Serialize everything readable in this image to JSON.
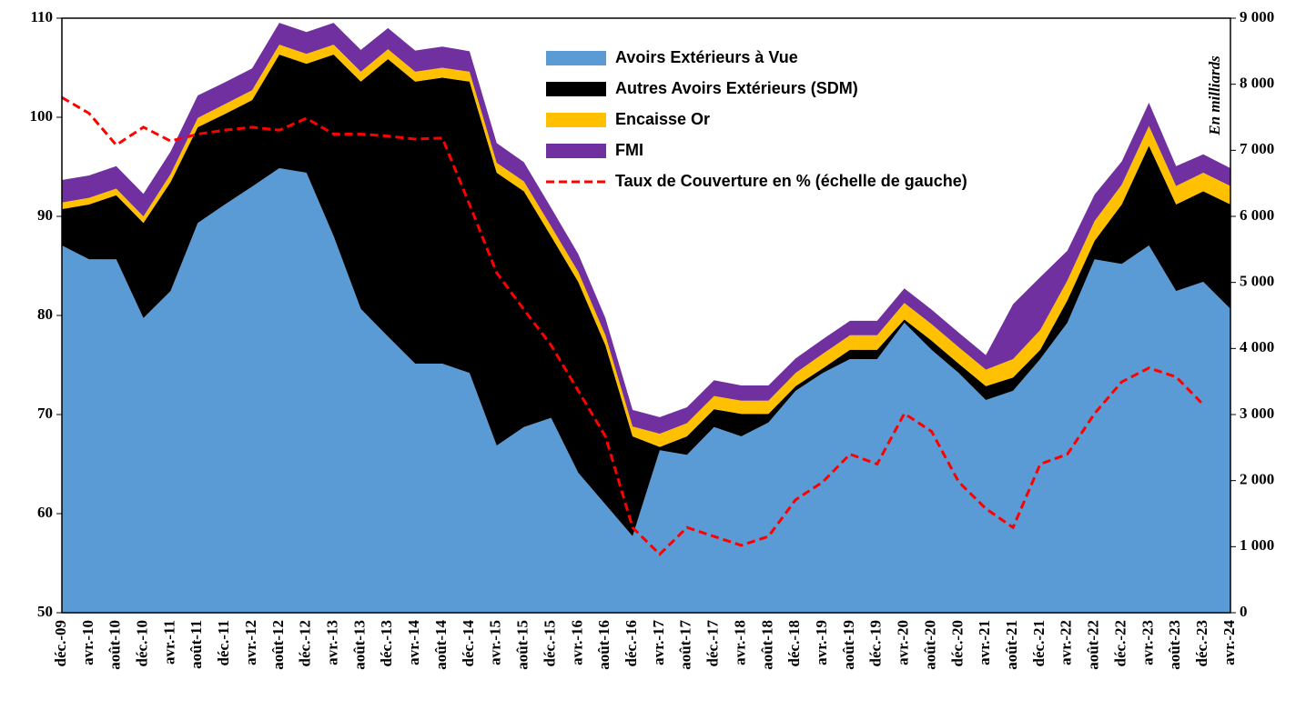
{
  "chart_data": {
    "type": "stacked_area_line",
    "y2label": "En milliards",
    "categories": [
      "déc.-09",
      "avr.-10",
      "août-10",
      "déc.-10",
      "avr.-11",
      "août-11",
      "déc.-11",
      "avr.-12",
      "août-12",
      "déc.-12",
      "avr.-13",
      "août-13",
      "déc.-13",
      "avr.-14",
      "août-14",
      "déc.-14",
      "avr.-15",
      "août-15",
      "déc.-15",
      "avr.-16",
      "août-16",
      "déc.-16",
      "avr.-17",
      "août-17",
      "déc.-17",
      "avr.-18",
      "août-18",
      "déc.-18",
      "avr.-19",
      "août-19",
      "déc.-19",
      "avr.-20",
      "août-20",
      "déc.-20",
      "avr.-21",
      "août-21",
      "déc.-21",
      "avr.-22",
      "août-22",
      "déc.-22",
      "avr.-23",
      "août-23",
      "déc.-23",
      "avr.-24"
    ],
    "series": [
      {
        "name": "Avoirs Extérieurs à Vue",
        "color": "#5b9bd5",
        "axis": "y2",
        "values": [
          5560,
          5350,
          5350,
          4460,
          4870,
          5900,
          6180,
          6450,
          6730,
          6660,
          5700,
          4600,
          4180,
          3770,
          3770,
          3630,
          2530,
          2810,
          2950,
          2120,
          1640,
          1160,
          2460,
          2390,
          2810,
          2670,
          2880,
          3360,
          3630,
          3840,
          3840,
          4390,
          3980,
          3630,
          3220,
          3360,
          3840,
          4390,
          5350,
          5280,
          5560,
          4870,
          5010,
          4600
        ]
      },
      {
        "name": "Autres Avoirs Extérieurs (SDM)",
        "color": "#000000",
        "axis": "y2",
        "values": [
          550,
          830,
          970,
          1440,
          1650,
          1450,
          1370,
          1310,
          1720,
          1650,
          2750,
          3440,
          4200,
          4270,
          4330,
          4410,
          4130,
          3570,
          2750,
          2890,
          2410,
          1510,
          50,
          280,
          270,
          340,
          130,
          70,
          70,
          140,
          140,
          50,
          140,
          140,
          210,
          200,
          140,
          340,
          280,
          900,
          1510,
          1310,
          1370,
          1580
        ]
      },
      {
        "name": "Encaisse Or",
        "color": "#ffc000",
        "axis": "y2",
        "values": [
          100,
          100,
          100,
          100,
          120,
          140,
          150,
          150,
          150,
          150,
          150,
          150,
          150,
          150,
          150,
          150,
          150,
          150,
          150,
          150,
          150,
          150,
          200,
          200,
          200,
          200,
          200,
          200,
          220,
          220,
          220,
          250,
          250,
          250,
          250,
          280,
          300,
          300,
          300,
          300,
          300,
          280,
          280,
          280
        ]
      },
      {
        "name": "FMI",
        "color": "#7030a0",
        "axis": "y2",
        "values": [
          340,
          340,
          340,
          340,
          340,
          340,
          330,
          330,
          330,
          330,
          330,
          330,
          320,
          320,
          320,
          310,
          300,
          290,
          280,
          270,
          260,
          250,
          250,
          240,
          240,
          230,
          230,
          220,
          220,
          220,
          220,
          220,
          220,
          220,
          220,
          830,
          800,
          450,
          400,
          350,
          350,
          300,
          280,
          270
        ]
      },
      {
        "name": "Taux de Couverture en % (échelle de gauche)",
        "color": "#ff0000",
        "axis": "y",
        "dashed": true,
        "values": [
          102.0,
          100.4,
          97.2,
          99.0,
          97.6,
          98.3,
          98.7,
          99.0,
          98.7,
          99.9,
          98.3,
          98.3,
          98.1,
          97.8,
          97.9,
          91.2,
          84.3,
          80.6,
          77.0,
          72.4,
          67.8,
          58.6,
          55.9,
          58.6,
          57.7,
          56.8,
          57.7,
          61.4,
          63.2,
          66.0,
          65.0,
          70.1,
          68.3,
          63.2,
          60.5,
          58.6,
          65.0,
          66.0,
          70.1,
          73.3,
          74.7,
          73.8,
          71.0,
          null
        ]
      }
    ],
    "ylim": [
      50,
      110
    ],
    "yticks": [
      50,
      60,
      70,
      80,
      90,
      100,
      110
    ],
    "y2lim": [
      0,
      9000
    ],
    "y2ticks": [
      0,
      {
        "value": 1000,
        "label": "1 000"
      },
      {
        "value": 2000,
        "label": "2 000"
      },
      {
        "value": 3000,
        "label": "3 000"
      },
      {
        "value": 4000,
        "label": "4 000"
      },
      {
        "value": 5000,
        "label": "5 000"
      },
      {
        "value": 6000,
        "label": "6 000"
      },
      {
        "value": 7000,
        "label": "7 000"
      },
      {
        "value": 8000,
        "label": "8 000"
      },
      {
        "value": 9000,
        "label": "9 000"
      }
    ],
    "legend": "top"
  }
}
